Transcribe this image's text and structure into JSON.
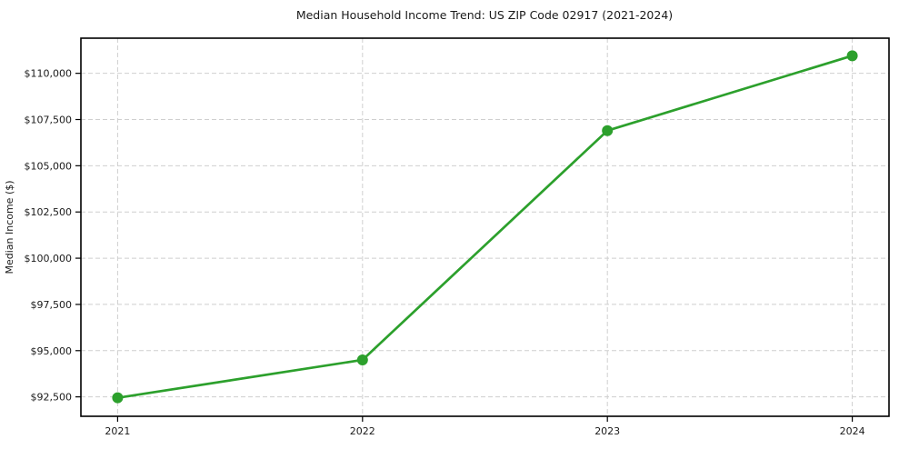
{
  "figure": {
    "background": "#ffffff"
  },
  "chart_data": {
    "type": "line",
    "title": "Median Household Income Trend: US ZIP Code 02917 (2021-2024)",
    "xlabel": "",
    "ylabel": "Median Income ($)",
    "categories": [
      "2021",
      "2022",
      "2023",
      "2024"
    ],
    "values": [
      92450,
      94500,
      106900,
      110950
    ],
    "yticks": {
      "values": [
        92500,
        95000,
        97500,
        100000,
        102500,
        105000,
        107500,
        110000
      ],
      "labels": [
        "$92,500",
        "$95,000",
        "$97,500",
        "$100,000",
        "$102,500",
        "$105,000",
        "$107,500",
        "$110,000"
      ]
    },
    "ylim": [
      91450,
      111900
    ],
    "grid": true,
    "grid_style": "dashed",
    "legend_position": "none",
    "colors": {
      "line": "#2ca02c",
      "marker": "#2ca02c",
      "grid": "#cfcfcf",
      "axis": "#000000",
      "text": "#1a1a1a"
    }
  }
}
